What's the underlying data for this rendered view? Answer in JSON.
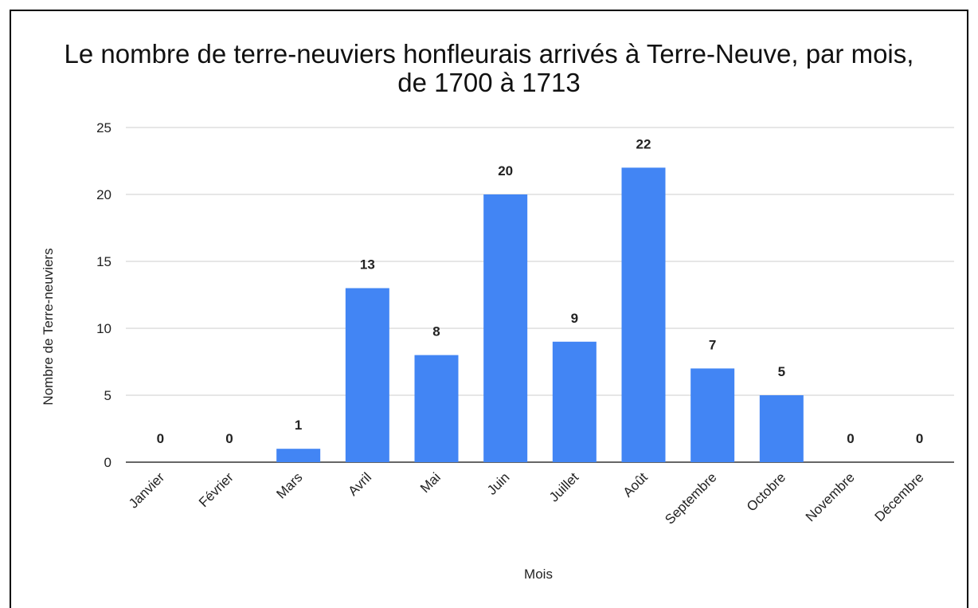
{
  "chart_data": {
    "type": "bar",
    "title": "Le nombre de terre-neuviers honfleurais arrivés à Terre-Neuve, par mois, de 1700 à 1713",
    "x_label": "Mois",
    "y_label": "Nombre de Terre-neuviers",
    "categories": [
      "Janvier",
      "Février",
      "Mars",
      "Avril",
      "Mai",
      "Juin",
      "Juillet",
      "Août",
      "Septembre",
      "Octobre",
      "Novembre",
      "Décembre"
    ],
    "values": [
      0,
      0,
      1,
      13,
      8,
      20,
      9,
      22,
      7,
      5,
      0,
      0
    ],
    "color": "#4285f4",
    "ylim": [
      0,
      25
    ],
    "yticks": [
      0,
      5,
      10,
      15,
      20,
      25
    ],
    "grid": true
  }
}
